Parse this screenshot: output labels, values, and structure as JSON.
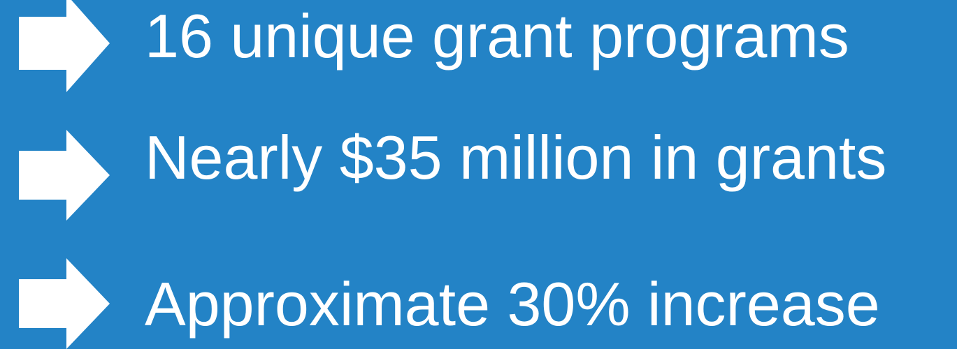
{
  "items": [
    "16 unique grant programs",
    "Nearly $35 million in grants",
    "Approximate 30% increase"
  ]
}
